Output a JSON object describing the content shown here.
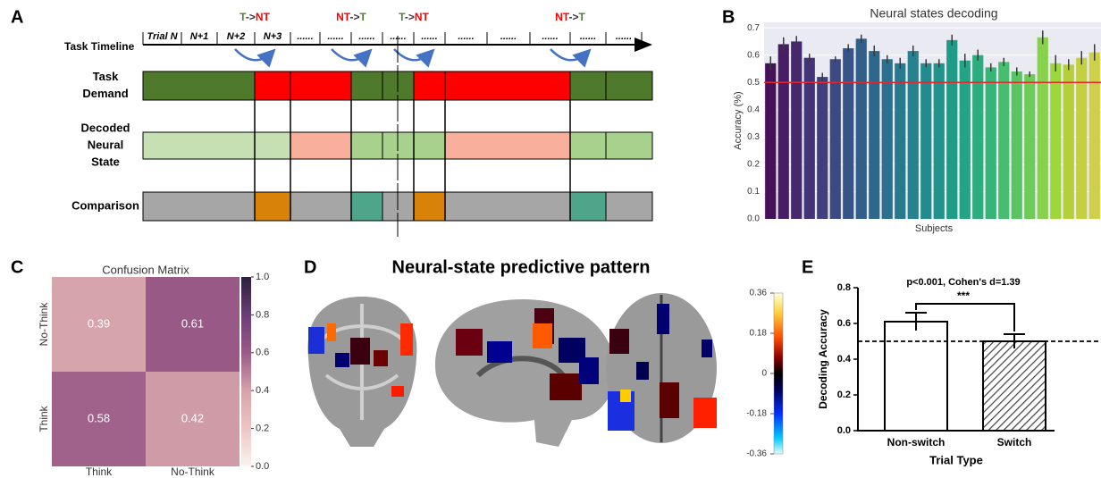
{
  "panel_labels": [
    "A",
    "B",
    "C",
    "D",
    "E"
  ],
  "diagram": {
    "timeline_label": "Task Timeline",
    "trials": [
      "Trial N",
      "N+1",
      "N+2",
      "N+3",
      "......",
      "......",
      "......",
      "......",
      "......",
      "......",
      "......",
      "......",
      "......",
      "......"
    ],
    "switches": [
      [
        "T",
        "->",
        "NT"
      ],
      [
        "NT",
        "->",
        "T"
      ],
      [
        "T",
        "->",
        "NT"
      ],
      [
        "NT",
        "->",
        "T"
      ]
    ],
    "switch_colors": {
      "T": "#548235",
      "NT": "#ff0000"
    },
    "rows": [
      {
        "label": [
          "Task",
          "Demand"
        ]
      },
      {
        "label": [
          "Decoded",
          "Neural",
          "State"
        ]
      },
      {
        "label": [
          "Comparison"
        ]
      }
    ]
  },
  "chart_data": [
    {
      "type": "bar",
      "title": "Neural states decoding",
      "xlabel": "Subjects",
      "ylabel": "Accuracy (%)",
      "values": [
        0.57,
        0.64,
        0.65,
        0.59,
        0.52,
        0.585,
        0.625,
        0.66,
        0.615,
        0.585,
        0.57,
        0.615,
        0.57,
        0.57,
        0.655,
        0.58,
        0.6,
        0.555,
        0.575,
        0.54,
        0.53,
        0.665,
        0.57,
        0.565,
        0.59,
        0.61
      ],
      "errors": [
        0.025,
        0.025,
        0.02,
        0.015,
        0.015,
        0.01,
        0.015,
        0.015,
        0.02,
        0.015,
        0.02,
        0.02,
        0.015,
        0.015,
        0.02,
        0.025,
        0.02,
        0.015,
        0.015,
        0.015,
        0.01,
        0.025,
        0.03,
        0.02,
        0.025,
        0.03
      ],
      "colors": [
        "#45115b",
        "#471d66",
        "#46286f",
        "#433477",
        "#3f3f7d",
        "#3b4a83",
        "#365487",
        "#325e8a",
        "#2e678c",
        "#2b708e",
        "#28798e",
        "#25828e",
        "#228b8d",
        "#20938b",
        "#1f9c88",
        "#22a485",
        "#2aad7f",
        "#36b578",
        "#47bd6f",
        "#5ac464",
        "#6fcb58",
        "#86d24a",
        "#9ed73c",
        "#b5cf3a",
        "#c4d040",
        "#cfd04a"
      ],
      "ylim": [
        0,
        0.72
      ],
      "yticks": [
        {
          "value": 0,
          "label": "0.0"
        },
        0.1,
        0.2,
        0.3,
        0.4,
        0.5,
        0.6,
        0.7
      ],
      "hline": 0.5,
      "hline_color": "#e8262a",
      "grid": true
    },
    {
      "type": "heatmap",
      "title": "Confusion Matrix",
      "rows": [
        "No-Think",
        "Think"
      ],
      "columns": [
        "Think",
        "No-Think"
      ],
      "values": [
        [
          0.39,
          0.61
        ],
        [
          0.58,
          0.42
        ]
      ],
      "clim": [
        0,
        1.0
      ],
      "cticks": [
        {
          "value": 0,
          "label": "0.0"
        },
        0.2,
        0.4,
        0.6,
        0.8,
        {
          "value": 1.0,
          "label": "1.0"
        }
      ],
      "colormap": [
        "#faf3f1",
        "#ecc6c4",
        "#d5a2aa",
        "#9a5a88",
        "#6a3f75",
        "#2d1e3e"
      ]
    },
    {
      "type": "bar",
      "xlabel": "Trial Type",
      "ylabel": "Decoding Accuracy",
      "categories": [
        "Non-switch",
        "Switch"
      ],
      "values": [
        0.61,
        0.5
      ],
      "errors": [
        0.05,
        0.04
      ],
      "hatched": [
        false,
        true
      ],
      "ylim": [
        0,
        0.8
      ],
      "yticks": [
        {
          "value": 0,
          "label": "0.0"
        },
        0.2,
        0.4,
        0.6,
        0.8
      ],
      "hline": 0.5,
      "annotation": "p<0.001, Cohen's d=1.39",
      "significance": "***"
    }
  ],
  "brain_map": {
    "title": "Neural-state predictive pattern",
    "clim": [
      -0.36,
      0.36
    ],
    "cticks": [
      0.36,
      0.18,
      0,
      -0.18,
      -0.36
    ]
  }
}
